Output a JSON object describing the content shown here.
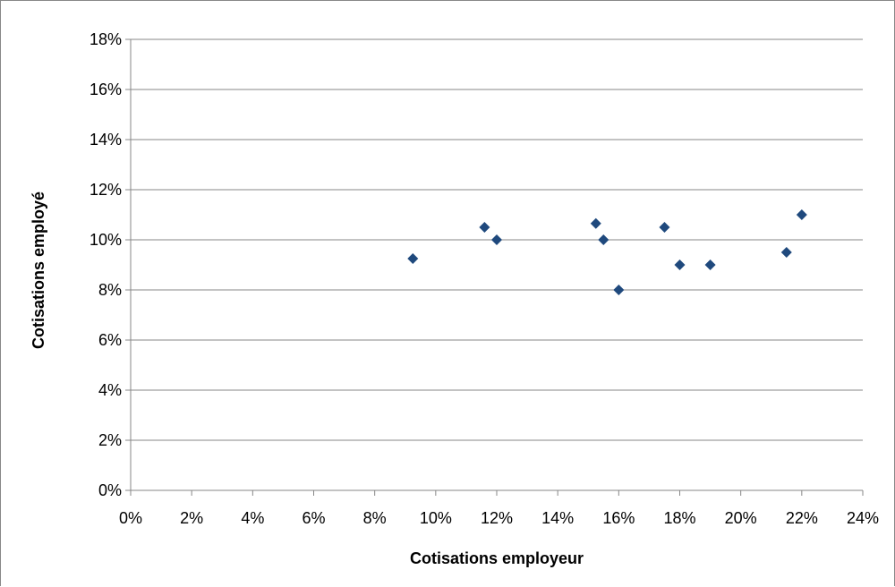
{
  "chart_data": {
    "type": "scatter",
    "title": "",
    "xlabel": "Cotisations employeur",
    "ylabel": "Cotisations employé",
    "xlim": [
      0,
      24
    ],
    "ylim": [
      0,
      18
    ],
    "x_ticks": [
      "0%",
      "2%",
      "4%",
      "6%",
      "8%",
      "10%",
      "12%",
      "14%",
      "16%",
      "18%",
      "20%",
      "22%",
      "24%"
    ],
    "y_ticks": [
      "0%",
      "2%",
      "4%",
      "6%",
      "8%",
      "10%",
      "12%",
      "14%",
      "16%",
      "18%"
    ],
    "x_tick_values": [
      0,
      2,
      4,
      6,
      8,
      10,
      12,
      14,
      16,
      18,
      20,
      22,
      24
    ],
    "y_tick_values": [
      0,
      2,
      4,
      6,
      8,
      10,
      12,
      14,
      16,
      18
    ],
    "unit": "%",
    "grid": "horizontal",
    "legend": "none",
    "marker": "diamond",
    "marker_color": "#1F497D",
    "gridline_color": "#878787",
    "points": [
      {
        "x": 9.25,
        "y": 9.25
      },
      {
        "x": 11.6,
        "y": 10.5
      },
      {
        "x": 12.0,
        "y": 10.0
      },
      {
        "x": 15.25,
        "y": 10.65
      },
      {
        "x": 15.5,
        "y": 10.0
      },
      {
        "x": 16.0,
        "y": 8.0
      },
      {
        "x": 17.5,
        "y": 10.5
      },
      {
        "x": 18.0,
        "y": 9.0
      },
      {
        "x": 19.0,
        "y": 9.0
      },
      {
        "x": 21.5,
        "y": 9.5
      },
      {
        "x": 22.0,
        "y": 11.0
      }
    ]
  }
}
